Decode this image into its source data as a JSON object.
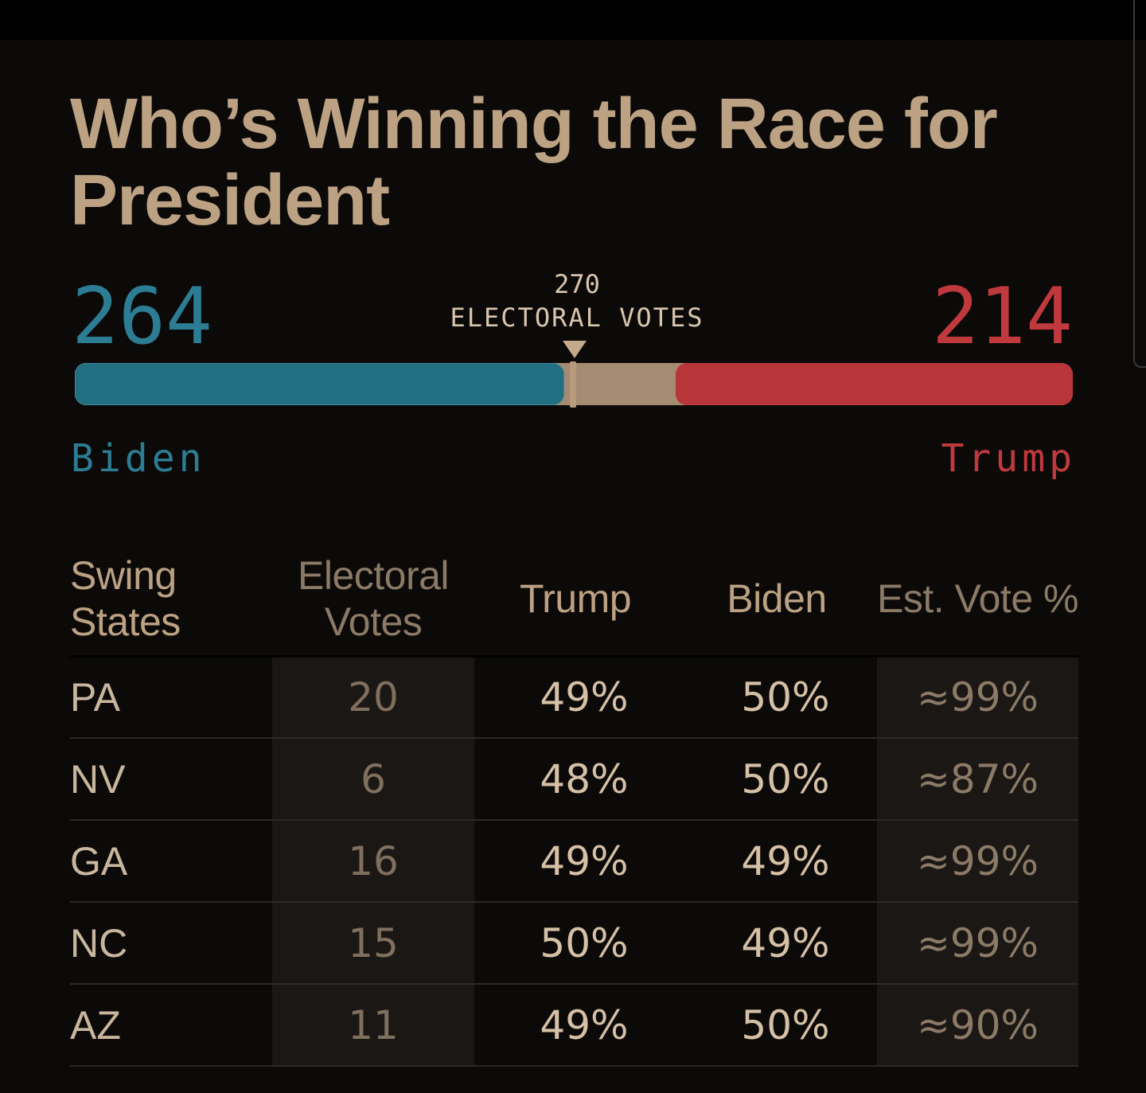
{
  "title": "Who’s Winning the Race for President",
  "electoral": {
    "biden_votes": "264",
    "trump_votes": "214",
    "threshold_number": "270",
    "threshold_label": "ELECTORAL VOTES",
    "biden_name": "Biden",
    "trump_name": "Trump",
    "total": 538,
    "needed": 270,
    "biden": 264,
    "trump": 214
  },
  "colors": {
    "biden": "#236f82",
    "trump": "#b83539",
    "accent": "#bca283"
  },
  "table": {
    "headers": {
      "state": "Swing States",
      "ev": "Electoral Votes",
      "trump": "Trump",
      "biden": "Biden",
      "est": "Est. Vote %"
    },
    "rows": [
      {
        "state": "PA",
        "ev": "20",
        "trump": "49%",
        "biden": "50%",
        "est": "≈99%"
      },
      {
        "state": "NV",
        "ev": "6",
        "trump": "48%",
        "biden": "50%",
        "est": "≈87%"
      },
      {
        "state": "GA",
        "ev": "16",
        "trump": "49%",
        "biden": "49%",
        "est": "≈99%"
      },
      {
        "state": "NC",
        "ev": "15",
        "trump": "50%",
        "biden": "49%",
        "est": "≈99%"
      },
      {
        "state": "AZ",
        "ev": "11",
        "trump": "49%",
        "biden": "50%",
        "est": "≈90%"
      }
    ]
  }
}
